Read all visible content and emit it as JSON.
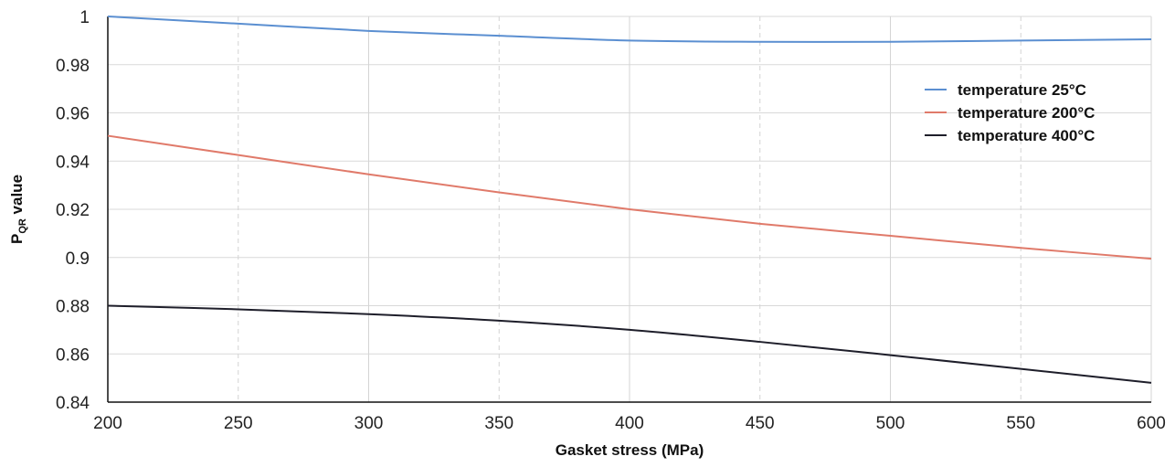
{
  "chart_data": {
    "type": "line",
    "xlabel": "Gasket stress (MPa)",
    "ylabel": {
      "main": "P",
      "sub": "QR",
      "rest": " value"
    },
    "xlim": [
      200,
      600
    ],
    "ylim": [
      0.84,
      1.0
    ],
    "x_ticks": [
      200,
      250,
      300,
      350,
      400,
      450,
      500,
      550,
      600
    ],
    "x_tick_labels": [
      "200",
      "250",
      "300",
      "350",
      "400",
      "450",
      "500",
      "550",
      "600"
    ],
    "y_ticks": [
      0.84,
      0.86,
      0.88,
      0.9,
      0.92,
      0.94,
      0.96,
      0.98,
      1.0
    ],
    "y_tick_labels": [
      "0.84",
      "0.86",
      "0.88",
      "0.9",
      "0.92",
      "0.94",
      "0.96",
      "0.98",
      "1"
    ],
    "grid": true,
    "legend_position": "top-right",
    "x": [
      200,
      250,
      300,
      350,
      400,
      450,
      500,
      550,
      600
    ],
    "series": [
      {
        "name": "temperature 25°C",
        "color": "#5b8fd1",
        "values": [
          1.0,
          0.997,
          0.994,
          0.992,
          0.99,
          0.9895,
          0.9895,
          0.99,
          0.9905
        ]
      },
      {
        "name": "temperature 200°C",
        "color": "#e07a6a",
        "values": [
          0.9505,
          0.9425,
          0.9345,
          0.927,
          0.92,
          0.914,
          0.909,
          0.904,
          0.8995
        ]
      },
      {
        "name": "temperature 400°C",
        "color": "#1e1e2a",
        "values": [
          0.88,
          0.8785,
          0.8765,
          0.8738,
          0.87,
          0.865,
          0.8595,
          0.8538,
          0.848
        ]
      }
    ]
  }
}
